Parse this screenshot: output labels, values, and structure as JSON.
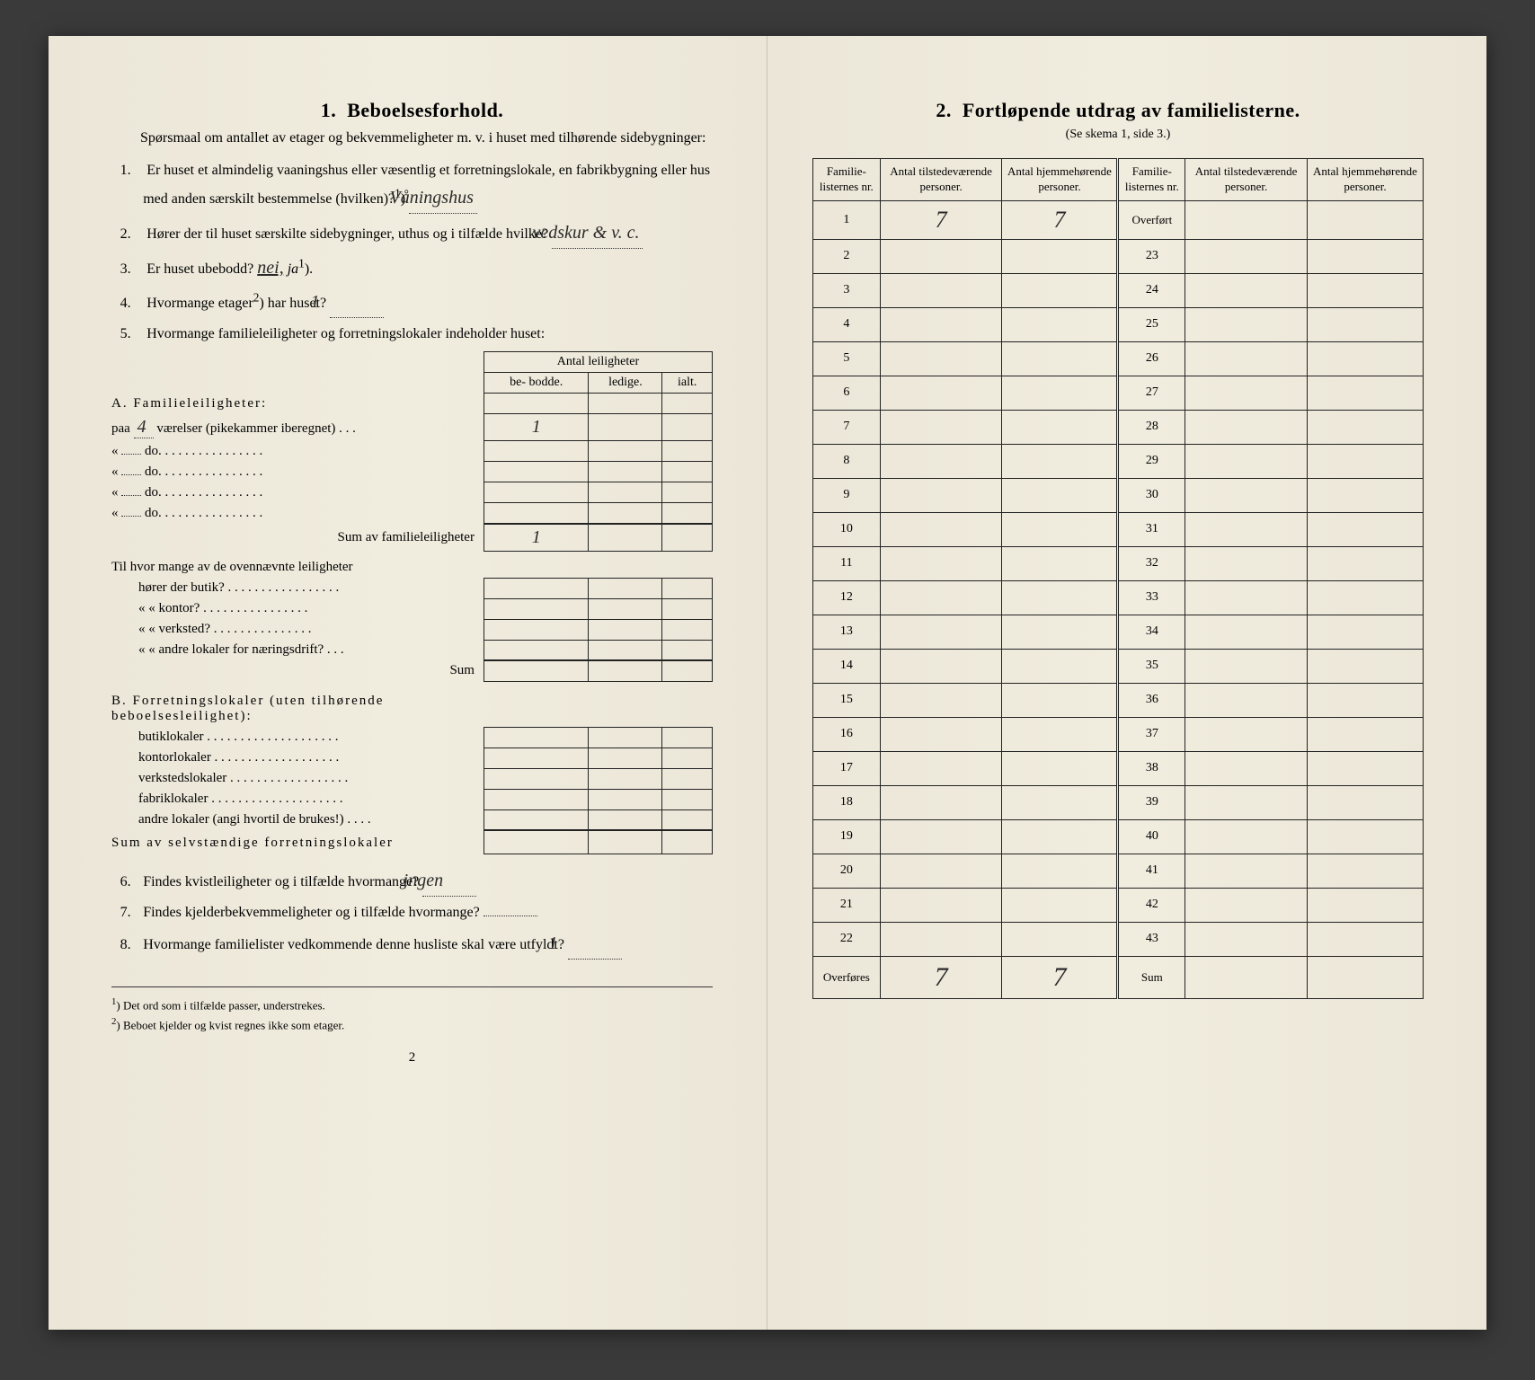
{
  "left": {
    "section_num": "1.",
    "section_title": "Beboelsesforhold.",
    "intro": "Spørsmaal om antallet av etager og bekvemmeligheter m. v. i huset med tilhørende sidebygninger:",
    "q1_pre": "Er huset et almindelig vaaningshus eller væsentlig et forretningslokale, en fabrikbygning eller hus med anden særskilt bestemmelse (hvilken)?",
    "q1_sup": "1",
    "q1_ans": "Våningshus",
    "q2_pre": "Hører der til huset særskilte sidebygninger, uthus og i tilfælde hvilke?",
    "q2_ans": "vedskur & v. c.",
    "q3_pre": "Er huset ubebodd?",
    "q3_nei": "nei,",
    "q3_ja": "ja",
    "q3_sup": "1",
    "q4_pre": "Hvormange etager",
    "q4_sup": "2",
    "q4_post": " har huset?",
    "q4_ans": "1",
    "q5": "Hvormange familieleiligheter og forretningslokaler indeholder huset:",
    "leil_header": "Antal leiligheter",
    "leil_cols": [
      "be-\nbodde.",
      "ledige.",
      "ialt."
    ],
    "A_title": "A. Familieleiligheter:",
    "A_rows": [
      {
        "label_pre": "paa",
        "label_num": "4",
        "label_post": "værelser (pikekammer iberegnet) . . .",
        "val": "1"
      },
      {
        "label_pre": "«",
        "label_num": "",
        "label_post": "do.        . . . . . . . . . . . . . . .",
        "val": ""
      },
      {
        "label_pre": "«",
        "label_num": "",
        "label_post": "do.        . . . . . . . . . . . . . . .",
        "val": ""
      },
      {
        "label_pre": "«",
        "label_num": "",
        "label_post": "do.        . . . . . . . . . . . . . . .",
        "val": ""
      },
      {
        "label_pre": "«",
        "label_num": "",
        "label_post": "do.        . . . . . . . . . . . . . . .",
        "val": ""
      }
    ],
    "A_sum_label": "Sum av familieleiligheter",
    "A_sum_val": "1",
    "A_extra_intro": "Til hvor mange av de ovennævnte leiligheter",
    "A_extra": [
      "hører der butik? . . . . . . . . . . . . . . . . .",
      "«      « kontor? . . . . . . . . . . . . . . . .",
      "«      « verksted? . . . . . . . . . . . . . . .",
      "«      « andre lokaler for næringsdrift? . . ."
    ],
    "A_extra_sum": "Sum",
    "B_title": "B. Forretningslokaler (uten tilhørende beboelsesleilighet):",
    "B_rows": [
      "butiklokaler . . . . . . . . . . . . . . . . . . . .",
      "kontorlokaler  . . . . . . . . . . . . . . . . . . .",
      "verkstedslokaler . . . . . . . . . . . . . . . . . .",
      "fabriklokaler . . . . . . . . . . . . . . . . . . . .",
      "andre lokaler (angi hvortil de brukes!) . . . ."
    ],
    "B_sum_label": "Sum av selvstændige forretningslokaler",
    "q6_pre": "Findes kvistleiligheter og i tilfælde hvormange?",
    "q6_ans": "ingen",
    "q7": "Findes kjelderbekvemmeligheter og i tilfælde hvormange?",
    "q8_pre": "Hvormange familielister vedkommende denne husliste skal være utfyldt?",
    "q8_ans": "1",
    "fn1_sup": "1",
    "fn1": "Det ord som i tilfælde passer, understrekes.",
    "fn2_sup": "2",
    "fn2": "Beboet kjelder og kvist regnes ikke som etager.",
    "pagenum": "2"
  },
  "right": {
    "section_num": "2.",
    "section_title": "Fortløpende utdrag av familielisterne.",
    "subtitle": "(Se skema 1, side 3.)",
    "cols": [
      "Familie-\nlisternes\nnr.",
      "Antal\ntilstedeværende\npersoner.",
      "Antal\nhjemmehørende\npersoner.",
      "Familie-\nlisternes\nnr.",
      "Antal\ntilstedeværende\npersoner.",
      "Antal\nhjemmehørende\npersoner."
    ],
    "rows_left_nums": [
      "1",
      "2",
      "3",
      "4",
      "5",
      "6",
      "7",
      "8",
      "9",
      "10",
      "11",
      "12",
      "13",
      "14",
      "15",
      "16",
      "17",
      "18",
      "19",
      "20",
      "21",
      "22"
    ],
    "row1_v1": "7",
    "row1_v2": "7",
    "overfort": "Overført",
    "rows_right_nums": [
      "23",
      "24",
      "25",
      "26",
      "27",
      "28",
      "29",
      "30",
      "31",
      "32",
      "33",
      "34",
      "35",
      "36",
      "37",
      "38",
      "39",
      "40",
      "41",
      "42",
      "43"
    ],
    "overfores": "Overføres",
    "sum_label": "Sum",
    "overfores_v1": "7",
    "overfores_v2": "7"
  }
}
